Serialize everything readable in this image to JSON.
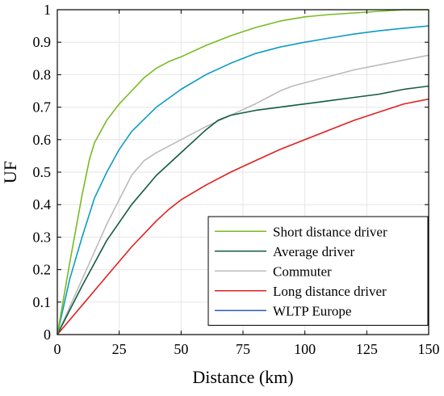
{
  "chart_data": {
    "type": "line",
    "title": "",
    "xlabel": "Distance (km)",
    "ylabel": "UF",
    "xlim": [
      0,
      150
    ],
    "ylim": [
      0,
      1
    ],
    "xticks": [
      0,
      25,
      50,
      75,
      100,
      125,
      150
    ],
    "yticks": [
      0,
      0.1,
      0.2,
      0.3,
      0.4,
      0.5,
      0.6,
      0.7,
      0.8,
      0.9,
      1
    ],
    "xtick_labels": [
      "0",
      "25",
      "50",
      "75",
      "100",
      "125",
      "150"
    ],
    "ytick_labels": [
      "0",
      "0.1",
      "0.2",
      "0.3",
      "0.4",
      "0.5",
      "0.6",
      "0.7",
      "0.8",
      "0.9",
      "1"
    ],
    "grid": true,
    "legend_position": "bottom-right",
    "series": [
      {
        "name": "Short distance driver",
        "color": "#77bb22",
        "x": [
          0,
          5,
          10,
          13,
          15,
          20,
          25,
          30,
          35,
          40,
          45,
          50,
          60,
          70,
          80,
          90,
          100,
          110,
          120,
          130,
          140,
          150
        ],
        "y": [
          0,
          0.22,
          0.43,
          0.54,
          0.59,
          0.66,
          0.71,
          0.75,
          0.79,
          0.82,
          0.84,
          0.855,
          0.89,
          0.92,
          0.945,
          0.965,
          0.978,
          0.985,
          0.99,
          0.995,
          1.0,
          1.0
        ]
      },
      {
        "name": "Average driver",
        "color": "#135c3e",
        "x": [
          0,
          10,
          20,
          30,
          40,
          50,
          60,
          65,
          70,
          80,
          90,
          100,
          110,
          120,
          130,
          140,
          150
        ],
        "y": [
          0,
          0.15,
          0.29,
          0.4,
          0.49,
          0.56,
          0.63,
          0.66,
          0.675,
          0.69,
          0.7,
          0.71,
          0.72,
          0.73,
          0.74,
          0.755,
          0.765
        ]
      },
      {
        "name": "Commuter",
        "color": "#bbbbbb",
        "x": [
          0,
          10,
          20,
          30,
          35,
          40,
          50,
          60,
          70,
          80,
          90,
          95,
          100,
          110,
          120,
          130,
          140,
          150
        ],
        "y": [
          0,
          0.17,
          0.34,
          0.49,
          0.535,
          0.56,
          0.6,
          0.64,
          0.675,
          0.71,
          0.75,
          0.765,
          0.775,
          0.795,
          0.815,
          0.83,
          0.845,
          0.86
        ]
      },
      {
        "name": "Long distance driver",
        "color": "#e02020",
        "x": [
          0,
          10,
          20,
          30,
          40,
          45,
          50,
          60,
          70,
          80,
          90,
          100,
          110,
          120,
          130,
          140,
          150
        ],
        "y": [
          0,
          0.09,
          0.18,
          0.27,
          0.35,
          0.385,
          0.415,
          0.46,
          0.5,
          0.535,
          0.57,
          0.6,
          0.63,
          0.66,
          0.685,
          0.71,
          0.725
        ]
      },
      {
        "name": "WLTP Europe",
        "color": "#0f9bc4",
        "legend_color": "#2a5dc4",
        "x": [
          0,
          5,
          10,
          15,
          20,
          25,
          30,
          40,
          50,
          60,
          70,
          80,
          90,
          100,
          110,
          120,
          130,
          140,
          150
        ],
        "y": [
          0,
          0.17,
          0.3,
          0.42,
          0.5,
          0.57,
          0.625,
          0.7,
          0.755,
          0.8,
          0.835,
          0.865,
          0.885,
          0.9,
          0.913,
          0.925,
          0.935,
          0.943,
          0.95
        ]
      }
    ]
  }
}
